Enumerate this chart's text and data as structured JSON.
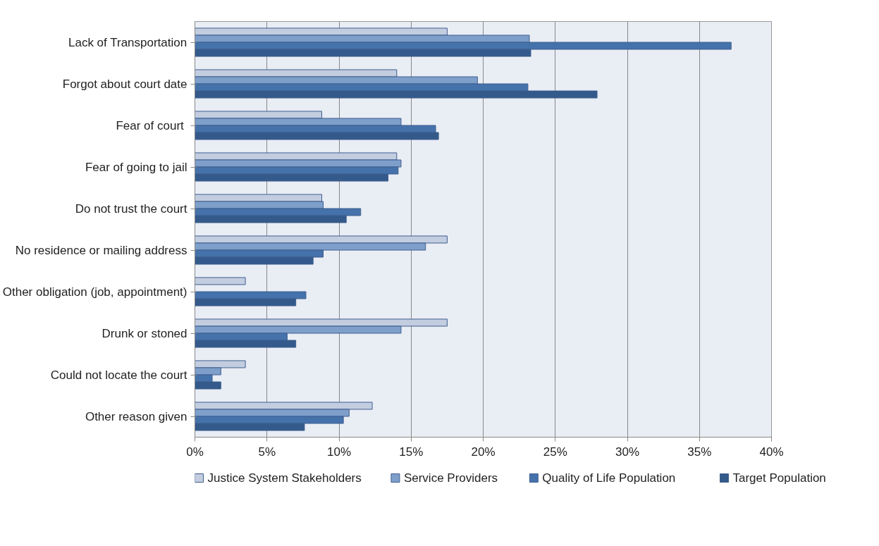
{
  "chart_data": {
    "type": "bar",
    "orientation": "horizontal",
    "categories": [
      "Lack of Transportation",
      "Forgot about court date",
      "Fear of  court",
      "Fear of going to jail",
      "Do not trust the court",
      "No residence or mailing address",
      "Other obligation (job, appointment)",
      "Drunk or stoned",
      "Could not locate the court",
      "Other reason given"
    ],
    "series": [
      {
        "name": "Justice System Stakeholders",
        "color": "#c3cde0",
        "values": [
          17.5,
          14.0,
          8.8,
          14.0,
          8.8,
          17.5,
          3.5,
          17.5,
          3.5,
          12.3
        ]
      },
      {
        "name": "Service Providers",
        "color": "#7f9fcb",
        "values": [
          23.2,
          19.6,
          14.3,
          14.3,
          8.9,
          16.0,
          null,
          14.3,
          1.8,
          10.7
        ]
      },
      {
        "name": "Quality of Life Population",
        "color": "#4572ab",
        "values": [
          37.2,
          23.1,
          16.7,
          14.1,
          11.5,
          8.9,
          7.7,
          6.4,
          1.2,
          10.3
        ]
      },
      {
        "name": "Target Population",
        "color": "#335a8a",
        "values": [
          23.3,
          27.9,
          16.9,
          13.4,
          10.5,
          8.2,
          7.0,
          7.0,
          1.8,
          7.6
        ]
      }
    ],
    "xlim": [
      0,
      40
    ],
    "xticks": [
      {
        "value": 0,
        "label": "0%"
      },
      {
        "value": 5,
        "label": "5%"
      },
      {
        "value": 10,
        "label": "10%"
      },
      {
        "value": 15,
        "label": "15%"
      },
      {
        "value": 20,
        "label": "20%"
      },
      {
        "value": 25,
        "label": "25%"
      },
      {
        "value": 30,
        "label": "30%"
      },
      {
        "value": 35,
        "label": "35%"
      },
      {
        "value": 40,
        "label": "40%"
      }
    ],
    "grid": "x",
    "legend": "bottom"
  }
}
